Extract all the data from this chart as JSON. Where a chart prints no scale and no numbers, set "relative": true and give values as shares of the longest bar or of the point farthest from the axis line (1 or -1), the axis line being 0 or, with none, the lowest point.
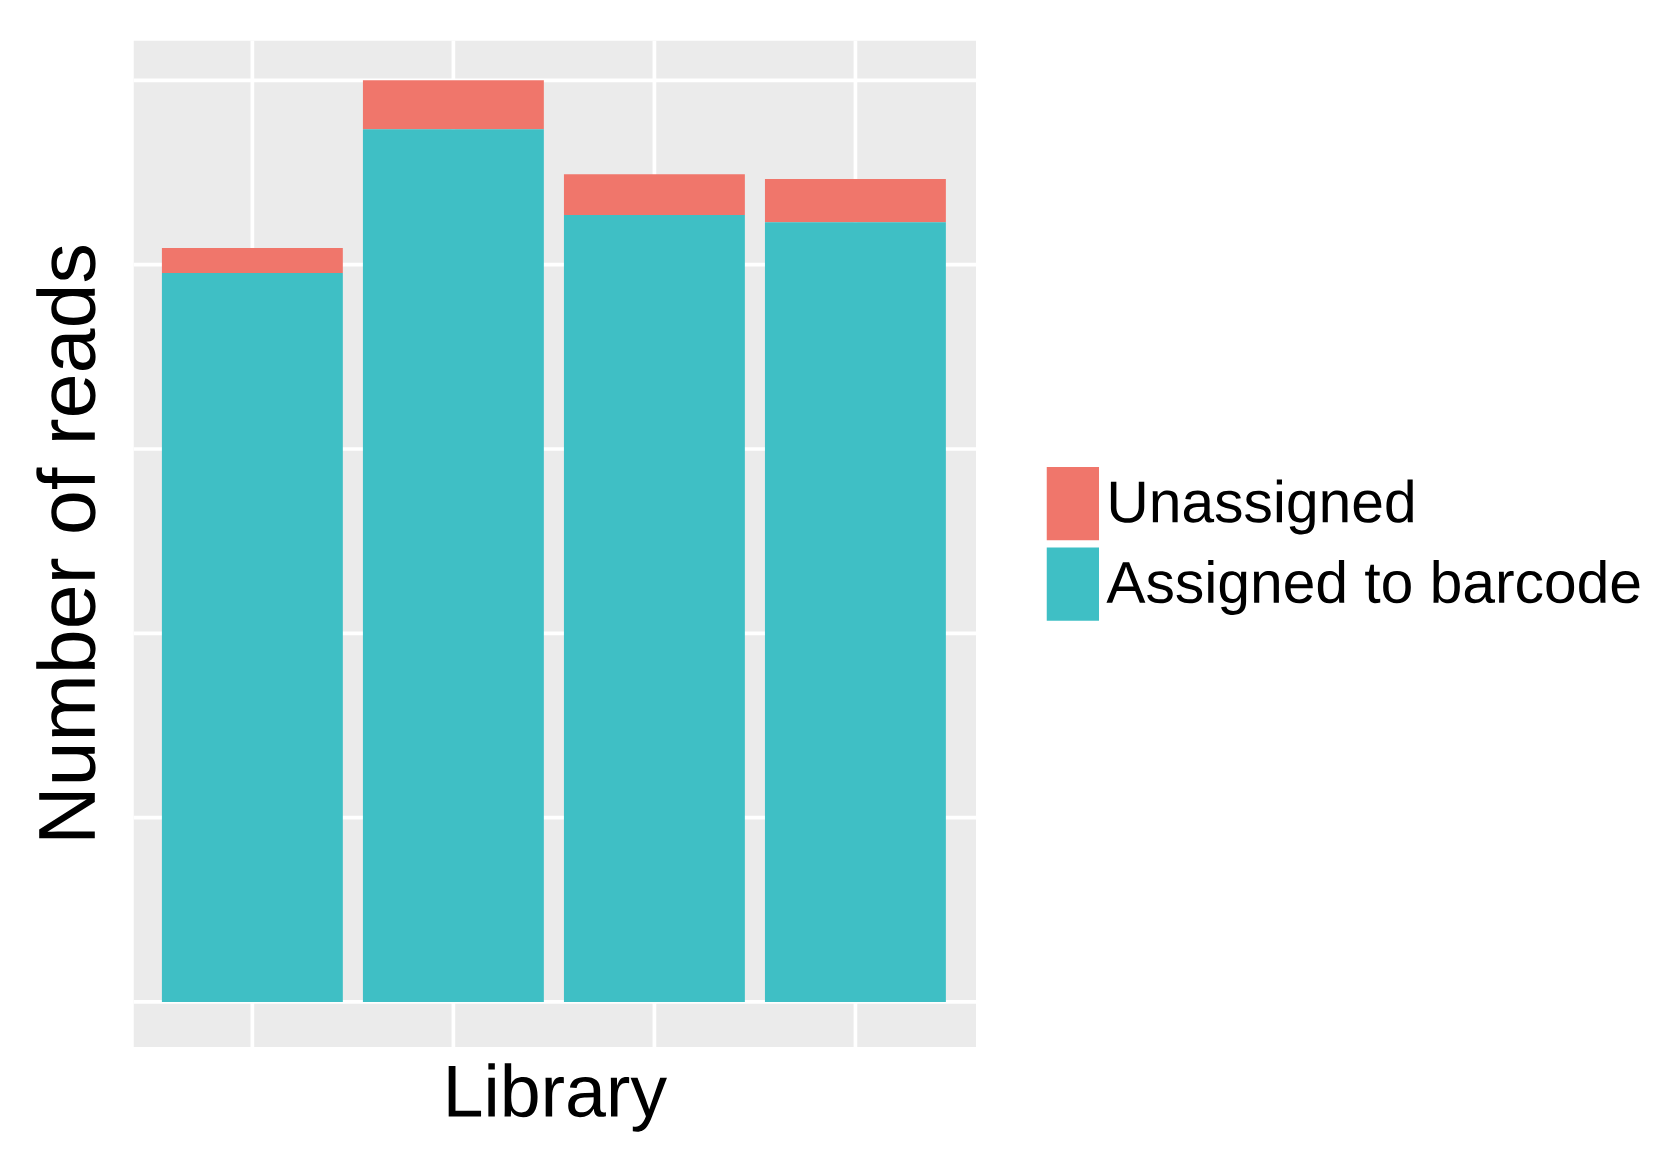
{
  "chart_data": {
    "type": "bar",
    "stacked": true,
    "relative": true,
    "xlabel": "Library",
    "ylabel": "Number of reads",
    "categories": [
      null,
      null,
      null,
      null
    ],
    "series": [
      {
        "name": "Assigned to barcode",
        "color": "#3fbfc5",
        "values": [
          0.791,
          0.947,
          0.854,
          0.846
        ]
      },
      {
        "name": "Unassigned",
        "color": "#f0766b",
        "values": [
          0.027,
          0.053,
          0.044,
          0.047
        ]
      }
    ],
    "grid": true,
    "legend": "right"
  }
}
